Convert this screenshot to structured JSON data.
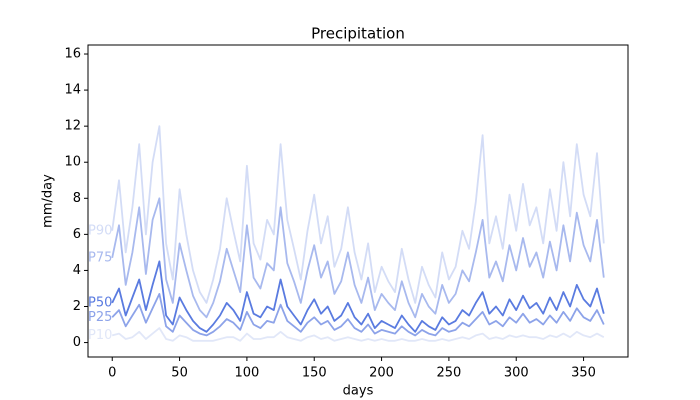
{
  "chart_data": {
    "type": "line",
    "title": "Precipitation",
    "x_label": "days",
    "y_label": "mm/day",
    "x": [
      0,
      5,
      10,
      15,
      20,
      25,
      30,
      35,
      40,
      45,
      50,
      55,
      60,
      65,
      70,
      75,
      80,
      85,
      90,
      95,
      100,
      105,
      110,
      115,
      120,
      125,
      130,
      135,
      140,
      145,
      150,
      155,
      160,
      165,
      170,
      175,
      180,
      185,
      190,
      195,
      200,
      205,
      210,
      215,
      220,
      225,
      230,
      235,
      240,
      245,
      250,
      255,
      260,
      265,
      270,
      275,
      280,
      285,
      290,
      295,
      300,
      305,
      310,
      315,
      320,
      325,
      330,
      335,
      340,
      345,
      350,
      355,
      360,
      365
    ],
    "series": [
      {
        "name": "P90",
        "color": "#d3dcf6",
        "values": [
          6.2,
          9.0,
          5.0,
          7.5,
          11.0,
          6.0,
          10.0,
          12.0,
          5.5,
          3.5,
          8.5,
          6.0,
          4.0,
          2.8,
          2.2,
          3.5,
          5.2,
          8.0,
          6.2,
          4.5,
          9.8,
          5.5,
          4.6,
          6.8,
          6.0,
          11.0,
          6.8,
          5.2,
          3.5,
          6.2,
          8.2,
          5.5,
          7.0,
          4.2,
          5.2,
          7.5,
          5.0,
          3.5,
          5.5,
          2.8,
          4.2,
          3.4,
          2.8,
          5.2,
          3.5,
          2.2,
          4.2,
          3.2,
          2.5,
          5.0,
          3.5,
          4.2,
          6.2,
          5.2,
          7.8,
          11.5,
          5.5,
          7.0,
          5.2,
          8.2,
          6.2,
          8.8,
          6.5,
          7.5,
          5.5,
          8.5,
          6.2,
          10.0,
          7.0,
          11.0,
          8.2,
          7.0,
          10.5,
          5.5
        ]
      },
      {
        "name": "P75",
        "color": "#a8b9ee",
        "values": [
          4.7,
          6.5,
          3.2,
          5.0,
          7.5,
          3.8,
          6.8,
          8.0,
          3.5,
          2.2,
          5.5,
          4.0,
          2.6,
          1.8,
          1.4,
          2.2,
          3.4,
          5.2,
          4.0,
          2.8,
          6.5,
          3.6,
          3.0,
          4.4,
          4.0,
          7.5,
          4.4,
          3.4,
          2.2,
          4.0,
          5.4,
          3.6,
          4.5,
          2.7,
          3.4,
          5.0,
          3.2,
          2.2,
          3.6,
          1.8,
          2.7,
          2.2,
          1.8,
          3.4,
          2.2,
          1.4,
          2.7,
          2.0,
          1.6,
          3.2,
          2.2,
          2.7,
          4.0,
          3.4,
          5.0,
          6.8,
          3.6,
          4.5,
          3.4,
          5.4,
          4.0,
          5.8,
          4.2,
          5.0,
          3.6,
          5.6,
          4.0,
          6.5,
          4.5,
          7.2,
          5.4,
          4.5,
          6.8,
          3.6
        ]
      },
      {
        "name": "P50",
        "color": "#5a7be0",
        "values": [
          2.2,
          3.0,
          1.5,
          2.5,
          3.5,
          1.8,
          3.2,
          4.5,
          1.5,
          1.0,
          2.5,
          1.8,
          1.2,
          0.8,
          0.6,
          1.0,
          1.5,
          2.2,
          1.8,
          1.2,
          2.8,
          1.6,
          1.4,
          2.0,
          1.8,
          3.5,
          2.0,
          1.5,
          1.0,
          1.8,
          2.4,
          1.6,
          2.0,
          1.2,
          1.5,
          2.2,
          1.4,
          1.0,
          1.6,
          0.8,
          1.2,
          1.0,
          0.8,
          1.5,
          1.0,
          0.6,
          1.2,
          0.9,
          0.7,
          1.4,
          1.0,
          1.2,
          1.8,
          1.5,
          2.2,
          2.8,
          1.6,
          2.0,
          1.5,
          2.4,
          1.8,
          2.6,
          1.9,
          2.2,
          1.6,
          2.5,
          1.8,
          2.8,
          2.0,
          3.2,
          2.4,
          2.0,
          3.0,
          1.6
        ]
      },
      {
        "name": "P25",
        "color": "#8da3e9",
        "values": [
          1.4,
          1.8,
          0.9,
          1.5,
          2.1,
          1.1,
          1.9,
          2.7,
          0.9,
          0.6,
          1.5,
          1.1,
          0.7,
          0.5,
          0.4,
          0.6,
          0.9,
          1.3,
          1.1,
          0.7,
          1.7,
          1.0,
          0.8,
          1.2,
          1.1,
          2.1,
          1.2,
          0.9,
          0.6,
          1.1,
          1.4,
          1.0,
          1.2,
          0.7,
          0.9,
          1.3,
          0.8,
          0.6,
          1.0,
          0.5,
          0.7,
          0.6,
          0.5,
          0.9,
          0.6,
          0.4,
          0.7,
          0.5,
          0.4,
          0.8,
          0.6,
          0.7,
          1.1,
          0.9,
          1.3,
          1.7,
          1.0,
          1.2,
          0.9,
          1.4,
          1.1,
          1.6,
          1.1,
          1.3,
          1.0,
          1.5,
          1.1,
          1.7,
          1.2,
          1.9,
          1.4,
          1.2,
          1.8,
          1.0
        ]
      },
      {
        "name": "P10",
        "color": "#e1e7f8",
        "values": [
          0.4,
          0.5,
          0.2,
          0.3,
          0.6,
          0.2,
          0.5,
          0.8,
          0.2,
          0.1,
          0.4,
          0.3,
          0.1,
          0.1,
          0.1,
          0.1,
          0.2,
          0.3,
          0.3,
          0.1,
          0.5,
          0.2,
          0.2,
          0.3,
          0.3,
          0.6,
          0.3,
          0.2,
          0.1,
          0.3,
          0.4,
          0.2,
          0.3,
          0.1,
          0.2,
          0.3,
          0.2,
          0.1,
          0.2,
          0.1,
          0.2,
          0.1,
          0.1,
          0.2,
          0.1,
          0.1,
          0.2,
          0.1,
          0.1,
          0.2,
          0.1,
          0.2,
          0.3,
          0.2,
          0.4,
          0.5,
          0.2,
          0.3,
          0.2,
          0.4,
          0.3,
          0.4,
          0.3,
          0.3,
          0.2,
          0.4,
          0.3,
          0.5,
          0.3,
          0.6,
          0.4,
          0.3,
          0.5,
          0.3
        ]
      }
    ],
    "xlim": [
      -18,
      383
    ],
    "ylim": [
      -0.8,
      16.5
    ],
    "xticks": [
      0,
      50,
      100,
      150,
      200,
      250,
      300,
      350
    ],
    "yticks": [
      0,
      2,
      4,
      6,
      8,
      10,
      12,
      14,
      16
    ]
  }
}
